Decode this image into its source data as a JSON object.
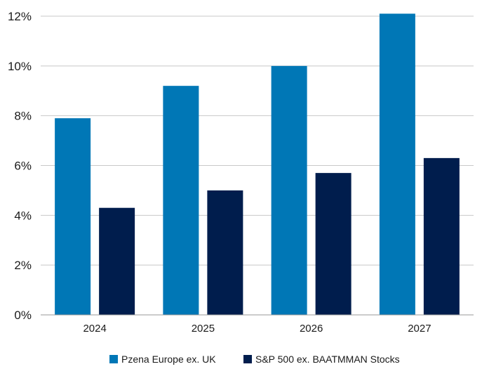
{
  "chart_data": {
    "type": "bar",
    "categories": [
      "2024",
      "2025",
      "2026",
      "2027"
    ],
    "series": [
      {
        "name": "Pzena Europe ex. UK",
        "values": [
          7.9,
          9.2,
          10.0,
          12.1
        ],
        "color": "#0077b6"
      },
      {
        "name": "S&P 500 ex. BAATMMAN Stocks",
        "values": [
          4.3,
          5.0,
          5.7,
          6.3
        ],
        "color": "#001d4d"
      }
    ],
    "y_ticks": [
      "0%",
      "2%",
      "4%",
      "6%",
      "8%",
      "10%",
      "12%"
    ],
    "ylim": [
      0,
      12
    ],
    "grid": true,
    "legend_position": "bottom"
  }
}
